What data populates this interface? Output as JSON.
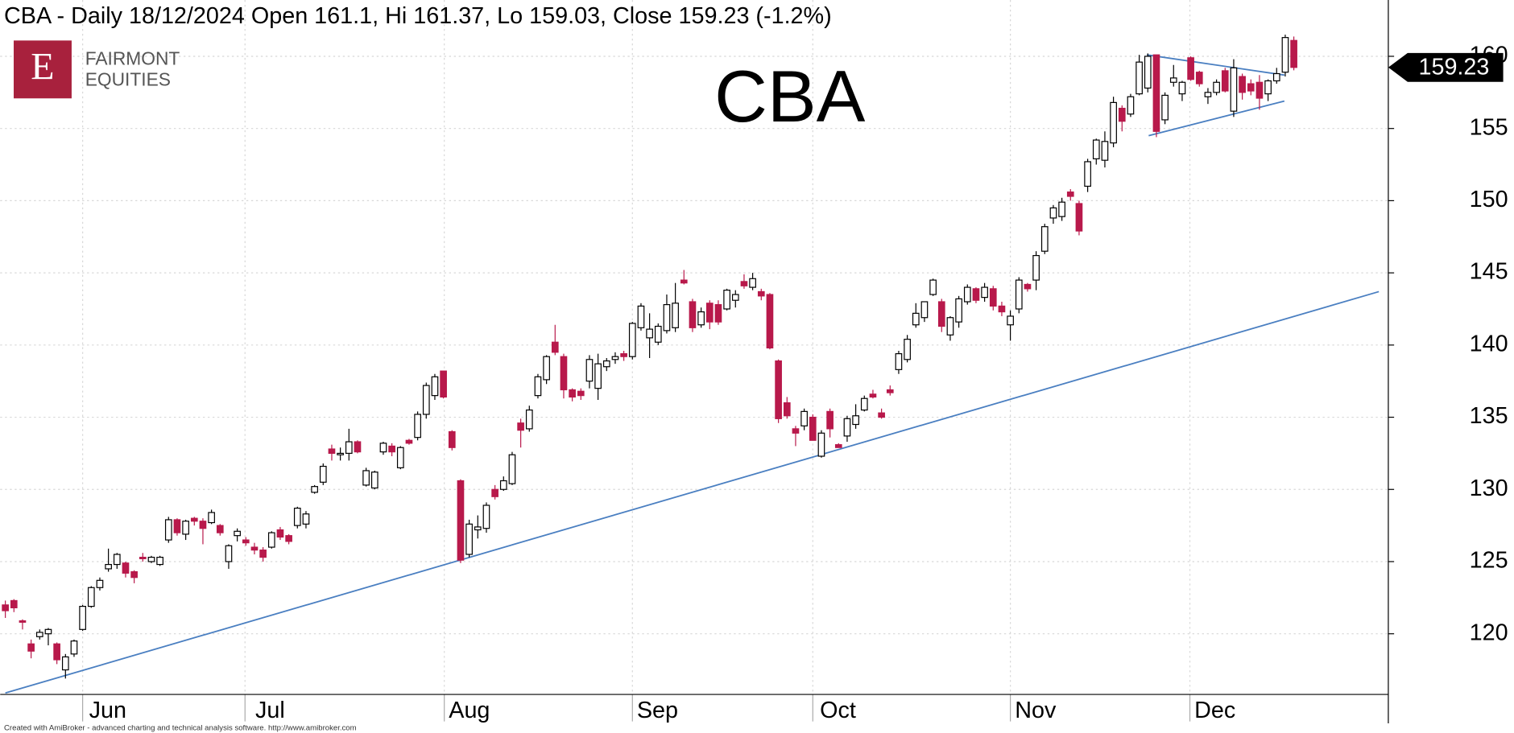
{
  "chart_data": {
    "type": "candlestick",
    "title": "CBA - Daily 18/12/2024 Open 161.1, Hi 161.37, Lo 159.03, Close 159.23 (-1.2%)",
    "symbol_label": "CBA",
    "logo": {
      "letter": "E",
      "lines": [
        "FAIRMONT",
        "EQUITIES"
      ]
    },
    "footer": "Created with AmiBroker - advanced charting and technical analysis software. http://www.amibroker.com",
    "last_value_label": "159.23",
    "up_color": "#ffffff",
    "down_color": "#b8194b",
    "trendline_color": "#4a7fc1",
    "grid": true,
    "ylim": [
      115.8,
      163.9
    ],
    "yticks": [
      120,
      125,
      130,
      135,
      140,
      145,
      150,
      155,
      160
    ],
    "xlim": [
      -0.6,
      161
    ],
    "xticks": [
      {
        "value": 9,
        "label": "Jun"
      },
      {
        "value": 27.9,
        "label": "Jul"
      },
      {
        "value": 51.1,
        "label": "Aug"
      },
      {
        "value": 73,
        "label": "Sep"
      },
      {
        "value": 94,
        "label": "Oct"
      },
      {
        "value": 117,
        "label": "Nov"
      },
      {
        "value": 137.9,
        "label": "Dec"
      }
    ],
    "trendlines": [
      {
        "x": [
          0,
          159.9
        ],
        "y": [
          115.9,
          143.7
        ]
      },
      {
        "x": [
          132.9,
          148.9
        ],
        "y": [
          160.1,
          158.7
        ]
      },
      {
        "x": [
          133.1,
          148.9
        ],
        "y": [
          154.5,
          156.9
        ]
      }
    ],
    "ohlc": [
      [
        122.0,
        122.3,
        121.1,
        121.6
      ],
      [
        122.3,
        122.4,
        121.5,
        121.8
      ],
      [
        120.9,
        121.0,
        120.3,
        120.8
      ],
      [
        119.3,
        119.6,
        118.3,
        118.8
      ],
      [
        119.8,
        120.3,
        119.6,
        120.1
      ],
      [
        120.0,
        120.4,
        119.2,
        120.3
      ],
      [
        119.3,
        119.4,
        117.9,
        118.2
      ],
      [
        117.5,
        118.6,
        116.9,
        118.4
      ],
      [
        118.6,
        119.6,
        118.4,
        119.5
      ],
      [
        120.3,
        122.0,
        120.2,
        121.9
      ],
      [
        121.9,
        123.3,
        121.8,
        123.2
      ],
      [
        123.2,
        123.9,
        123.0,
        123.7
      ],
      [
        124.5,
        125.9,
        124.3,
        124.8
      ],
      [
        124.8,
        125.6,
        124.5,
        125.5
      ],
      [
        124.9,
        125.0,
        123.9,
        124.2
      ],
      [
        124.3,
        124.4,
        123.5,
        123.9
      ],
      [
        125.3,
        125.6,
        125.0,
        125.2
      ],
      [
        125.0,
        125.4,
        124.9,
        125.3
      ],
      [
        124.8,
        125.4,
        124.7,
        125.3
      ],
      [
        126.5,
        128.1,
        126.3,
        127.9
      ],
      [
        127.9,
        128.0,
        126.8,
        127.0
      ],
      [
        126.9,
        127.9,
        126.5,
        127.8
      ],
      [
        128.0,
        128.1,
        127.5,
        127.8
      ],
      [
        127.8,
        128.0,
        126.2,
        127.3
      ],
      [
        127.7,
        128.6,
        127.6,
        128.4
      ],
      [
        127.5,
        127.6,
        126.8,
        127.0
      ],
      [
        125.0,
        126.2,
        124.5,
        126.1
      ],
      [
        126.8,
        127.3,
        126.4,
        127.1
      ],
      [
        126.5,
        126.7,
        126.1,
        126.3
      ],
      [
        126.0,
        126.3,
        125.5,
        125.8
      ],
      [
        125.8,
        126.0,
        125.0,
        125.3
      ],
      [
        126.0,
        127.1,
        125.9,
        127.0
      ],
      [
        127.2,
        127.4,
        126.5,
        126.7
      ],
      [
        126.8,
        126.9,
        126.2,
        126.4
      ],
      [
        127.5,
        128.8,
        127.3,
        128.7
      ],
      [
        127.6,
        128.5,
        127.3,
        128.3
      ],
      [
        129.8,
        130.3,
        129.7,
        130.2
      ],
      [
        130.5,
        131.8,
        130.3,
        131.6
      ],
      [
        132.8,
        133.1,
        132.0,
        132.5
      ],
      [
        132.4,
        132.9,
        132.0,
        132.5
      ],
      [
        132.5,
        134.2,
        132.0,
        133.3
      ],
      [
        133.3,
        133.4,
        132.5,
        132.6
      ],
      [
        130.3,
        131.5,
        130.2,
        131.3
      ],
      [
        130.1,
        131.3,
        130.0,
        131.2
      ],
      [
        132.6,
        133.3,
        132.4,
        133.2
      ],
      [
        133.0,
        133.2,
        132.3,
        132.6
      ],
      [
        131.5,
        133.0,
        131.4,
        132.9
      ],
      [
        133.4,
        133.5,
        133.1,
        133.2
      ],
      [
        133.6,
        135.4,
        133.4,
        135.2
      ],
      [
        135.2,
        137.4,
        134.9,
        137.2
      ],
      [
        136.5,
        138.0,
        136.2,
        137.8
      ],
      [
        138.2,
        138.2,
        136.3,
        136.4
      ],
      [
        134.0,
        134.1,
        132.7,
        132.9
      ],
      [
        130.6,
        130.7,
        124.9,
        125.1
      ],
      [
        125.5,
        127.9,
        125.3,
        127.6
      ],
      [
        127.2,
        128.2,
        126.6,
        127.4
      ],
      [
        127.3,
        129.1,
        127.0,
        128.9
      ],
      [
        130.0,
        130.3,
        129.3,
        129.5
      ],
      [
        130.0,
        130.9,
        129.9,
        130.6
      ],
      [
        130.4,
        132.6,
        130.3,
        132.4
      ],
      [
        134.6,
        134.9,
        132.9,
        134.1
      ],
      [
        134.2,
        135.8,
        134.0,
        135.5
      ],
      [
        136.5,
        138.0,
        136.3,
        137.8
      ],
      [
        137.6,
        139.3,
        137.3,
        139.2
      ],
      [
        140.2,
        141.4,
        139.3,
        139.5
      ],
      [
        139.2,
        139.4,
        136.3,
        136.9
      ],
      [
        136.9,
        137.0,
        136.1,
        136.4
      ],
      [
        136.8,
        137.0,
        136.2,
        136.5
      ],
      [
        137.5,
        139.3,
        137.0,
        139.0
      ],
      [
        137.0,
        139.4,
        136.2,
        138.7
      ],
      [
        138.5,
        139.1,
        138.2,
        138.9
      ],
      [
        139.0,
        139.5,
        138.7,
        139.2
      ],
      [
        139.4,
        139.6,
        138.9,
        139.2
      ],
      [
        139.2,
        141.6,
        139.0,
        141.5
      ],
      [
        141.2,
        142.9,
        141.0,
        142.7
      ],
      [
        140.5,
        142.2,
        139.1,
        141.1
      ],
      [
        140.2,
        141.5,
        140.0,
        141.3
      ],
      [
        141.0,
        143.5,
        140.8,
        142.8
      ],
      [
        141.2,
        144.3,
        140.9,
        142.9
      ],
      [
        144.5,
        145.2,
        144.2,
        144.3
      ],
      [
        143.0,
        143.2,
        140.9,
        141.2
      ],
      [
        141.4,
        142.6,
        141.2,
        142.3
      ],
      [
        142.9,
        143.1,
        141.1,
        141.6
      ],
      [
        142.8,
        143.1,
        141.4,
        141.6
      ],
      [
        142.5,
        143.9,
        142.4,
        143.8
      ],
      [
        143.1,
        143.8,
        142.6,
        143.5
      ],
      [
        144.4,
        144.9,
        143.9,
        144.1
      ],
      [
        144.0,
        145.0,
        143.8,
        144.6
      ],
      [
        143.7,
        143.9,
        143.1,
        143.4
      ],
      [
        143.5,
        143.6,
        139.7,
        139.8
      ],
      [
        138.9,
        139.0,
        134.6,
        134.9
      ],
      [
        136.0,
        136.4,
        134.9,
        135.1
      ],
      [
        134.2,
        134.4,
        133.0,
        133.9
      ],
      [
        134.4,
        135.6,
        134.1,
        135.4
      ],
      [
        135.0,
        135.2,
        133.4,
        133.4
      ],
      [
        132.3,
        134.1,
        132.2,
        133.9
      ],
      [
        135.4,
        135.6,
        133.6,
        134.2
      ],
      [
        133.1,
        133.2,
        132.9,
        132.9
      ],
      [
        133.7,
        135.1,
        133.3,
        134.9
      ],
      [
        134.5,
        135.9,
        134.2,
        135.1
      ],
      [
        135.5,
        136.5,
        135.4,
        136.3
      ],
      [
        136.6,
        136.9,
        136.3,
        136.4
      ],
      [
        135.3,
        135.6,
        134.9,
        135.0
      ],
      [
        136.9,
        137.2,
        136.5,
        136.7
      ],
      [
        138.3,
        139.6,
        138.0,
        139.4
      ],
      [
        139.0,
        140.7,
        138.8,
        140.4
      ],
      [
        141.4,
        142.9,
        141.2,
        142.2
      ],
      [
        141.9,
        143.0,
        141.6,
        143.0
      ],
      [
        143.5,
        144.6,
        143.4,
        144.5
      ],
      [
        143.0,
        143.2,
        140.9,
        141.3
      ],
      [
        140.7,
        142.0,
        140.3,
        141.9
      ],
      [
        141.6,
        143.4,
        141.2,
        143.2
      ],
      [
        143.0,
        144.2,
        142.8,
        144.0
      ],
      [
        143.9,
        144.0,
        142.9,
        143.1
      ],
      [
        143.3,
        144.3,
        143.0,
        144.0
      ],
      [
        143.9,
        144.1,
        142.4,
        142.7
      ],
      [
        142.7,
        143.0,
        142.0,
        142.3
      ],
      [
        141.4,
        142.4,
        140.3,
        142.0
      ],
      [
        142.5,
        144.7,
        142.2,
        144.5
      ],
      [
        144.2,
        144.3,
        143.7,
        143.9
      ],
      [
        144.5,
        146.5,
        143.8,
        146.2
      ],
      [
        146.5,
        148.4,
        146.3,
        148.2
      ],
      [
        148.8,
        149.7,
        148.4,
        149.5
      ],
      [
        148.9,
        150.2,
        148.6,
        149.9
      ],
      [
        150.6,
        150.8,
        150.0,
        150.3
      ],
      [
        149.8,
        150.0,
        147.6,
        147.9
      ],
      [
        151.0,
        152.9,
        150.6,
        152.7
      ],
      [
        152.9,
        154.3,
        152.5,
        154.2
      ],
      [
        152.8,
        154.8,
        152.3,
        154.1
      ],
      [
        154.0,
        157.2,
        153.7,
        156.8
      ],
      [
        156.4,
        156.6,
        154.8,
        155.5
      ],
      [
        156.0,
        157.4,
        155.8,
        157.2
      ],
      [
        157.4,
        160.1,
        157.3,
        159.6
      ],
      [
        157.8,
        160.2,
        157.5,
        160.0
      ],
      [
        160.1,
        160.1,
        154.4,
        154.8
      ],
      [
        155.6,
        157.5,
        155.3,
        157.3
      ],
      [
        158.2,
        159.4,
        157.9,
        158.5
      ],
      [
        157.4,
        158.3,
        156.9,
        158.2
      ],
      [
        159.9,
        160.0,
        158.3,
        158.4
      ],
      [
        158.9,
        159.0,
        157.9,
        158.1
      ],
      [
        157.2,
        157.8,
        156.7,
        157.5
      ],
      [
        157.5,
        158.4,
        157.3,
        158.2
      ],
      [
        159.0,
        159.2,
        157.5,
        157.6
      ],
      [
        156.2,
        159.8,
        155.8,
        159.2
      ],
      [
        158.6,
        158.8,
        157.0,
        157.5
      ],
      [
        158.1,
        158.4,
        157.3,
        157.6
      ],
      [
        158.2,
        158.7,
        156.3,
        157.1
      ],
      [
        157.4,
        158.4,
        156.9,
        158.3
      ],
      [
        158.3,
        159.2,
        158.1,
        158.8
      ],
      [
        158.9,
        161.5,
        158.6,
        161.3
      ],
      [
        161.1,
        161.37,
        159.03,
        159.23
      ]
    ]
  }
}
